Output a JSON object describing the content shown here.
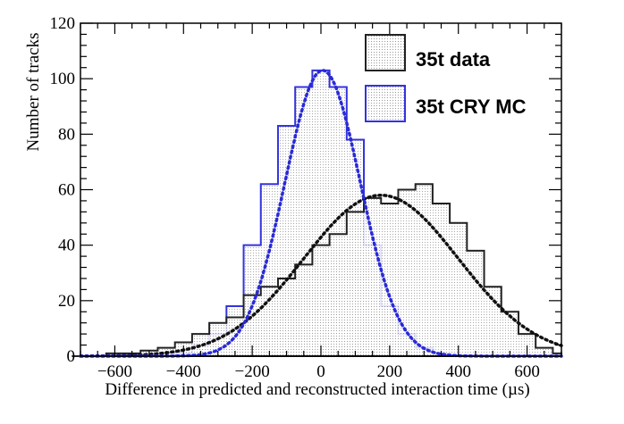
{
  "chart_data": {
    "type": "histogram",
    "xlabel": "Difference in predicted and reconstructed interaction time (µs)",
    "ylabel": "Number of tracks",
    "xlim": [
      -700,
      700
    ],
    "ylim": [
      0,
      120
    ],
    "x_ticks": [
      -600,
      -400,
      -200,
      0,
      200,
      400,
      600
    ],
    "y_ticks": [
      0,
      20,
      40,
      60,
      80,
      100,
      120
    ],
    "x_tick_labels": [
      "−600",
      "−400",
      "−200",
      "0",
      "200",
      "400",
      "600"
    ],
    "y_tick_labels": [
      "0",
      "20",
      "40",
      "60",
      "80",
      "100",
      "120"
    ],
    "legend_position": "top-right",
    "legend_entries": [
      "35t data",
      "35t CRY MC"
    ],
    "series": [
      {
        "name": "35t data",
        "color": "#222222",
        "fill": "dotted grey",
        "x": [
          -700,
          -650,
          -600,
          -550,
          -500,
          -450,
          -400,
          -350,
          -300,
          -250,
          -200,
          -150,
          -100,
          -50,
          0,
          50,
          100,
          150,
          200,
          250,
          300,
          350,
          400,
          450,
          500,
          550,
          600,
          650,
          700
        ],
        "y": [
          0,
          0,
          1,
          1,
          2,
          3,
          5,
          8,
          12,
          14,
          22,
          25,
          28,
          33,
          40,
          44,
          52,
          57,
          55,
          60,
          62,
          55,
          48,
          38,
          25,
          16,
          8,
          3,
          1
        ],
        "fit": {
          "mean": 175,
          "sigma": 225,
          "amplitude": 58
        }
      },
      {
        "name": "35t CRY MC",
        "color": "#3333dd",
        "fill": "dotted grey",
        "x": [
          -700,
          -650,
          -600,
          -550,
          -500,
          -450,
          -400,
          -350,
          -300,
          -250,
          -200,
          -150,
          -100,
          -50,
          0,
          50,
          100,
          150,
          200,
          250,
          300,
          350,
          400,
          450,
          500,
          550,
          600,
          650,
          700
        ],
        "y": [
          0,
          0,
          0,
          0,
          0,
          0,
          1,
          4,
          8,
          18,
          40,
          62,
          83,
          97,
          103,
          97,
          78,
          40,
          18,
          8,
          3,
          1,
          0,
          0,
          0,
          0,
          0,
          0,
          0
        ],
        "fit": {
          "mean": 5,
          "sigma": 110,
          "amplitude": 103
        }
      }
    ]
  },
  "colors": {
    "data_line": "#222222",
    "mc_line": "#3333dd",
    "fill": "#cfcfcf"
  }
}
